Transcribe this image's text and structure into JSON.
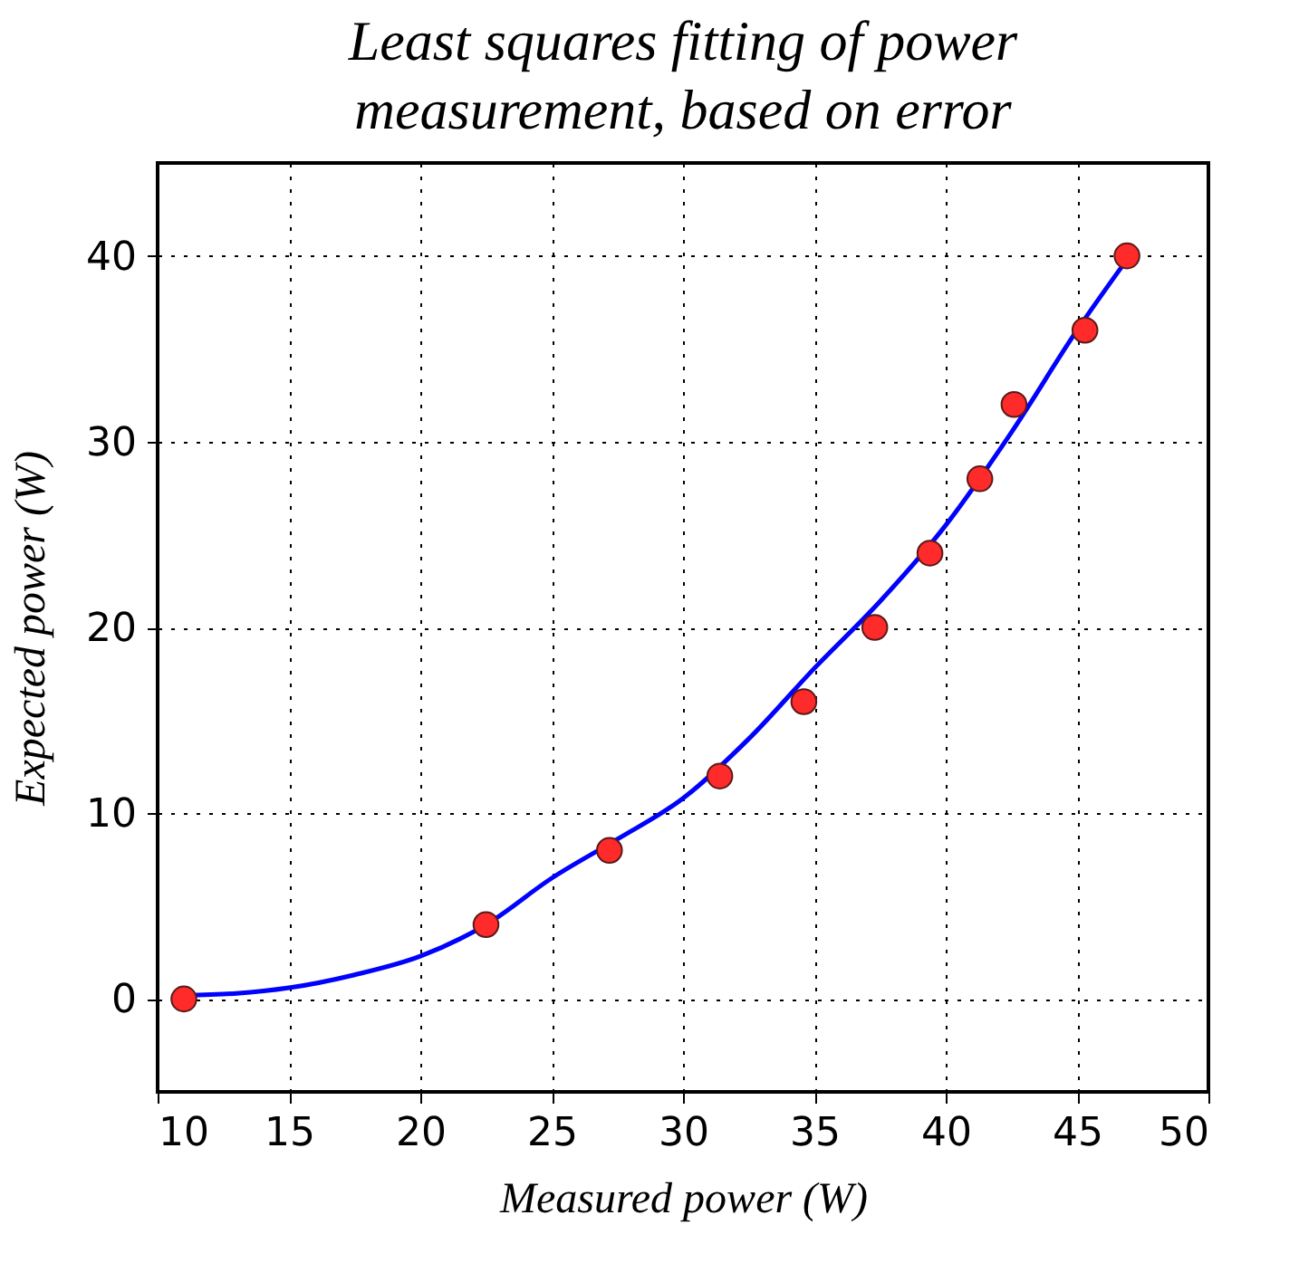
{
  "chart_data": {
    "type": "scatter",
    "title": "Least squares fitting of power\nmeasurement, based on error",
    "xlabel": "Measured power (W)",
    "ylabel": "Expected power (W)",
    "xlim": [
      10,
      50
    ],
    "xticks": [
      10,
      15,
      20,
      25,
      30,
      35,
      40,
      45,
      50
    ],
    "ylim": [
      -5,
      45
    ],
    "yticks": [
      0,
      10,
      20,
      30,
      40
    ],
    "grid": true,
    "series": [
      {
        "marker": "circle",
        "color": "#ff2a2a",
        "x": [
          11.0,
          22.5,
          27.2,
          31.4,
          34.6,
          37.3,
          39.4,
          41.3,
          42.6,
          45.3,
          46.9
        ],
        "values": [
          0,
          4,
          8,
          12,
          16,
          20,
          24,
          28,
          32,
          36,
          40
        ]
      },
      {
        "type": "line",
        "color": "#0000ff",
        "line_style": "solid",
        "x": [
          11,
          13,
          15,
          17.5,
          20,
          22.5,
          25,
          27.5,
          30,
          32.5,
          35,
          37.5,
          40,
          42.5,
          45,
          47
        ],
        "values": [
          0.2,
          0.3,
          0.6,
          1.3,
          2.3,
          4.0,
          6.5,
          8.6,
          10.8,
          14.0,
          17.8,
          21.4,
          25.5,
          30.5,
          36.0,
          40
        ]
      }
    ]
  }
}
